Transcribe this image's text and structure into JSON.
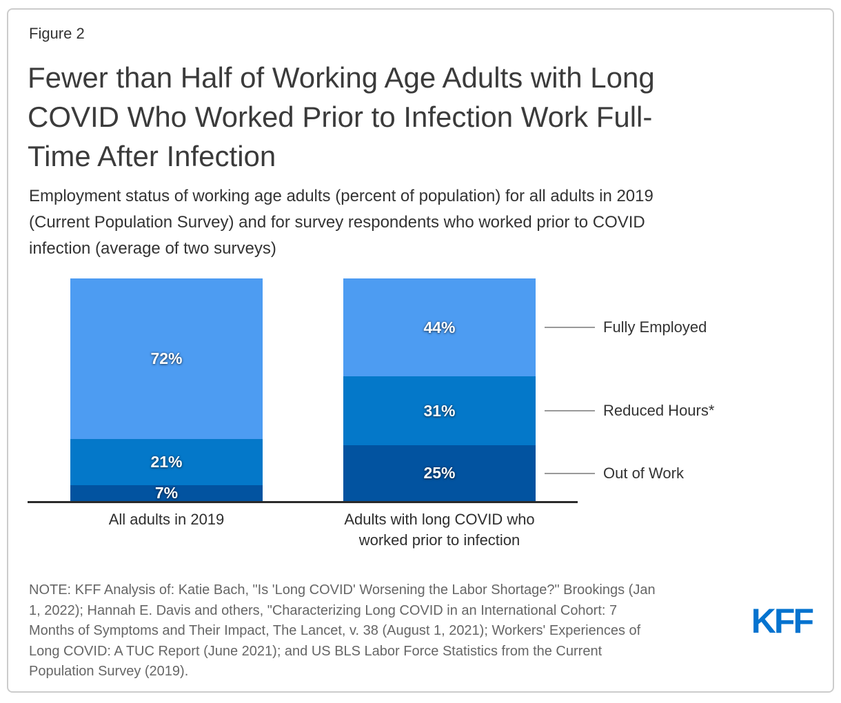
{
  "figure_label": "Figure 2",
  "title": "Fewer than Half of Working Age Adults with Long COVID Who Worked Prior to Infection Work Full-Time After Infection",
  "title_lines": [
    "Fewer than Half of Working Age Adults with Long",
    "COVID Who Worked Prior to Infection Work Full-",
    "Time After Infection"
  ],
  "subtitle": "Employment status of working age adults (percent of population) for all adults in 2019 (Current Population Survey) and for survey respondents who worked prior to COVID infection (average of two surveys)",
  "subtitle_lines": [
    "Employment status of working age adults (percent of population) for all adults in 2019",
    "(Current Population Survey) and for survey respondents who worked prior to COVID",
    "infection (average of two surveys)"
  ],
  "note": "NOTE: KFF Analysis of: Katie Bach, \"Is 'Long COVID' Worsening the Labor Shortage?\" Brookings (Jan 1, 2022); Hannah E. Davis and others, \"Characterizing Long COVID in an International Cohort: 7 Months of Symptoms and Their Impact, The Lancet, v. 38 (August 1, 2021); Workers' Experiences of Long COVID: A TUC Report (June 2021); and US BLS Labor Force Statistics from the Current Population Survey (2019).",
  "note_lines": [
    "NOTE: KFF Analysis of: Katie Bach, \"Is 'Long COVID' Worsening the Labor Shortage?\" Brookings (Jan",
    "1, 2022); Hannah E. Davis and others, \"Characterizing Long COVID in an International Cohort: 7",
    "Months of Symptoms and Their Impact, The Lancet, v. 38 (August 1, 2021); Workers' Experiences of",
    "Long COVID: A TUC Report (June 2021); and US BLS Labor Force Statistics from the Current",
    "Population Survey (2019)."
  ],
  "logo_text": "KFF",
  "colors": {
    "fully_employed": "#4D9CF2",
    "reduced_hours": "#0478C9",
    "out_of_work": "#0253A0",
    "axis": "#2A2A2A",
    "leader_line": "#999999",
    "logo_blue": "#0473CF",
    "border": "#CCCCCC"
  },
  "chart_data": {
    "type": "bar",
    "stacked": true,
    "orientation": "vertical",
    "grid": false,
    "ylim": [
      0,
      100
    ],
    "value_suffix": "%",
    "categories": [
      "All adults in 2019",
      "Adults with long COVID who worked prior to infection"
    ],
    "series": [
      {
        "name": "Fully Employed",
        "values": [
          72,
          44
        ],
        "color": "#4D9CF2"
      },
      {
        "name": "Reduced Hours*",
        "values": [
          21,
          31
        ],
        "color": "#0478C9"
      },
      {
        "name": "Out of Work",
        "values": [
          7,
          25
        ],
        "color": "#0253A0"
      }
    ],
    "legend_position": "right-annotations"
  }
}
